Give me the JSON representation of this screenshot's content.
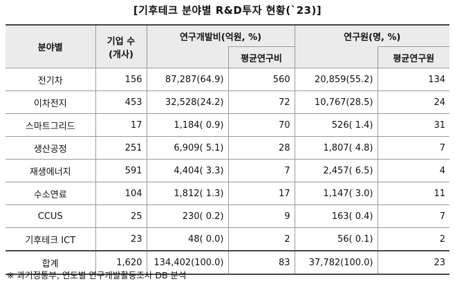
{
  "title": "[기후테크 분야별 R&D투자 현황(`23)]",
  "table": {
    "header": {
      "field": "분야별",
      "companies": "기업 수",
      "companies_unit": "(개사)",
      "rnd": "연구개발비(억원, %)",
      "rnd_avg": "평균연구비",
      "researchers": "연구원(명, %)",
      "researchers_avg": "평균연구원"
    },
    "rows": [
      [
        "전기차",
        "156",
        "87,287(64.9)",
        "560",
        "20,859(55.2)",
        "134"
      ],
      [
        "이차전지",
        "453",
        "32,528(24.2)",
        "72",
        "10,767(28.5)",
        "24"
      ],
      [
        "스마트그리드",
        "17",
        "1,184( 0.9)",
        "70",
        "526( 1.4)",
        "31"
      ],
      [
        "생산공정",
        "251",
        "6,909( 5.1)",
        "28",
        "1,807( 4.8)",
        "7"
      ],
      [
        "재생에너지",
        "591",
        "4,404( 3.3)",
        "7",
        "2,457( 6.5)",
        "4"
      ],
      [
        "수소연료",
        "104",
        "1,812( 1.3)",
        "17",
        "1,147( 3.0)",
        "11"
      ],
      [
        "CCUS",
        "25",
        "230( 0.2)",
        "9",
        "163( 0.4)",
        "7"
      ],
      [
        "기후테크 ICT",
        "23",
        "48( 0.0)",
        "2",
        "56( 0.1)",
        "2"
      ],
      [
        "합계",
        "1,620",
        "134,402(100.0)",
        "83",
        "37,782(100.0)",
        "23"
      ]
    ]
  },
  "note": "※ 과기정통부, 연도별 연구개발활동조사 DB 분석"
}
